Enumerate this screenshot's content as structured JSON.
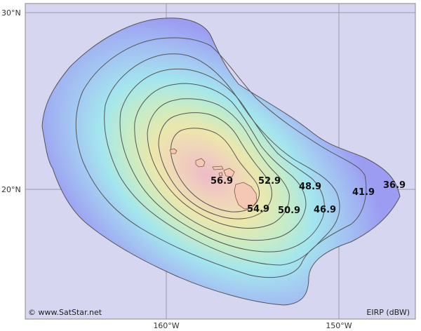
{
  "map": {
    "axes": {
      "lat_labels": [
        "30°N",
        "20°N"
      ],
      "lon_labels": [
        "160°W",
        "150°W"
      ]
    },
    "contour_labels": [
      "56.9",
      "54.9",
      "52.9",
      "50.9",
      "48.9",
      "46.9",
      "41.9",
      "36.9"
    ],
    "copyright": "© www.SatStar.net",
    "legend_unit": "EIRP (dBW)"
  },
  "colors": {
    "background": "#d6d6f0",
    "outer_blue": "#9c9cf2",
    "mid_cyan": "#9fe3f2",
    "inner_yellow": "#ece7ac",
    "core_pink": "#eebbc8",
    "land": "#f4c8b4",
    "contour_line": "#555555",
    "grid": "#9a9aa8"
  }
}
